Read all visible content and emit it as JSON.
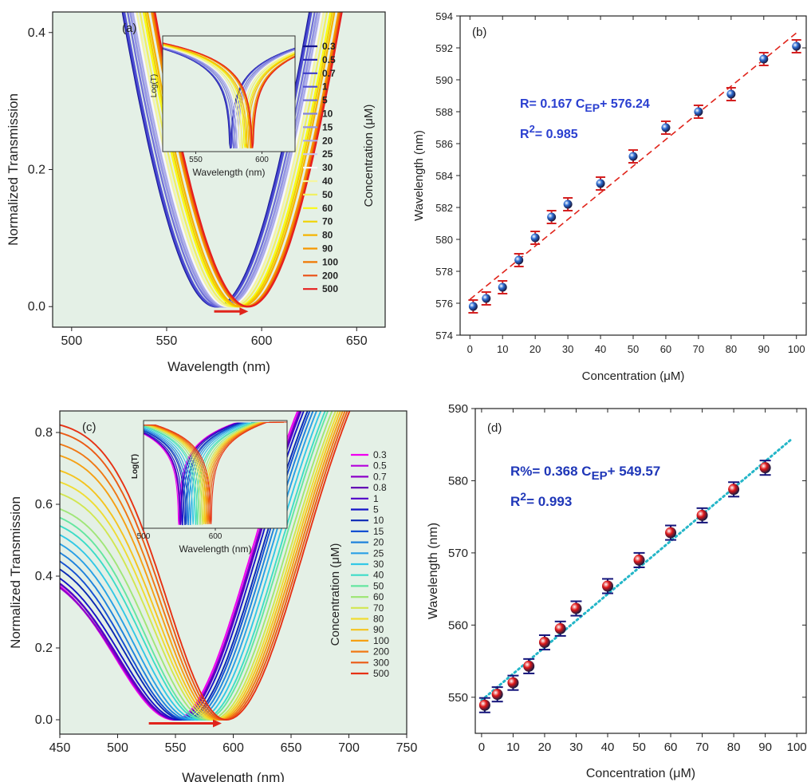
{
  "chart_data": [
    {
      "panel": "(a)",
      "type": "line",
      "xlabel": "Wavelength (nm)",
      "ylabel": "Normalized Transmission",
      "xlim": [
        490,
        665
      ],
      "ylim": [
        -0.03,
        0.43
      ],
      "xticks": [
        500,
        550,
        600,
        650
      ],
      "yticks": [
        0.0,
        0.2,
        0.4
      ],
      "background": "#e4f0e6",
      "legend_title": "Concentration (μM)",
      "legend_position": "right",
      "series": [
        {
          "name": "0.3",
          "color": "#14148c",
          "center": 576.0
        },
        {
          "name": "0.5",
          "color": "#2828b4",
          "center": 576.3
        },
        {
          "name": "0.7",
          "color": "#3c3cc8",
          "center": 576.5
        },
        {
          "name": "1",
          "color": "#5050d2",
          "center": 577.0
        },
        {
          "name": "5",
          "color": "#6e6ed8",
          "center": 578.7
        },
        {
          "name": "10",
          "color": "#8282de",
          "center": 580.0
        },
        {
          "name": "15",
          "color": "#9696e4",
          "center": 580.2
        },
        {
          "name": "20",
          "color": "#aaaaea",
          "center": 581.3
        },
        {
          "name": "25",
          "color": "#c8c8f0",
          "center": 582.2
        },
        {
          "name": "30",
          "color": "#f8f8ff",
          "center": 582.4
        },
        {
          "name": "40",
          "color": "#f5f5a0",
          "center": 583.5
        },
        {
          "name": "50",
          "color": "#f0f064",
          "center": 585.2
        },
        {
          "name": "60",
          "color": "#fafa14",
          "center": 587.0
        },
        {
          "name": "70",
          "color": "#f0d200",
          "center": 588.0
        },
        {
          "name": "80",
          "color": "#f5b400",
          "center": 589.1
        },
        {
          "name": "90",
          "color": "#f59600",
          "center": 591.3
        },
        {
          "name": "100",
          "color": "#f07800",
          "center": 592.1
        },
        {
          "name": "200",
          "color": "#eb5014",
          "center": 592.6
        },
        {
          "name": "500",
          "color": "#e61e1e",
          "center": 593.0
        }
      ],
      "inset": {
        "xlabel": "Wavelength (nm)",
        "ylabel": "Log(T)",
        "xticks": [
          550,
          600
        ]
      },
      "arrow_color": "#e0241b"
    },
    {
      "panel": "(b)",
      "type": "scatter",
      "xlabel": "Concentration (μM)",
      "ylabel": "Wavelength (nm)",
      "xlim": [
        -3,
        103
      ],
      "ylim": [
        574,
        594
      ],
      "xticks": [
        0,
        10,
        20,
        30,
        40,
        50,
        60,
        70,
        80,
        90,
        100
      ],
      "yticks": [
        574,
        576,
        578,
        580,
        582,
        584,
        586,
        588,
        590,
        592,
        594
      ],
      "x": [
        1,
        5,
        10,
        15,
        20,
        25,
        30,
        40,
        50,
        60,
        70,
        80,
        90,
        100
      ],
      "y": [
        575.8,
        576.3,
        577.0,
        578.7,
        580.1,
        581.4,
        582.2,
        583.5,
        585.2,
        587.0,
        588.0,
        589.1,
        591.3,
        592.1
      ],
      "error": [
        0.4,
        0.4,
        0.4,
        0.4,
        0.4,
        0.4,
        0.4,
        0.4,
        0.4,
        0.4,
        0.4,
        0.4,
        0.4,
        0.4
      ],
      "fit": {
        "slope": 0.167,
        "intercept": 576.24,
        "style": "dashed",
        "color": "#e0241b"
      },
      "annotations": {
        "equation": "R= 0.167 C",
        "sub": "EP",
        "tail": "+ 576.24",
        "r2_prefix": "R",
        "r2_sup": "2",
        "r2_value": "= 0.985"
      },
      "marker_color": "#2a6ad0",
      "error_color": "#d42020"
    },
    {
      "panel": "(c)",
      "type": "line",
      "xlabel": "Wavelength (nm)",
      "ylabel": "Normalized Transmission",
      "xlim": [
        450,
        750
      ],
      "ylim": [
        -0.04,
        0.86
      ],
      "xticks": [
        450,
        500,
        550,
        600,
        650,
        700,
        750
      ],
      "yticks": [
        0.0,
        0.2,
        0.4,
        0.6,
        0.8
      ],
      "background": "#e4f0e6",
      "legend_title": "Concentration (μM)",
      "legend_position": "right",
      "series": [
        {
          "name": "0.3",
          "color": "#f000f0",
          "center": 549.0,
          "left": 0.43
        },
        {
          "name": "0.5",
          "color": "#b400dc",
          "center": 550.5,
          "left": 0.42
        },
        {
          "name": "0.7",
          "color": "#8c00c8",
          "center": 551.0,
          "left": 0.42
        },
        {
          "name": "0.8",
          "color": "#6400b4",
          "center": 551.5,
          "left": 0.43
        },
        {
          "name": "1",
          "color": "#5000c8",
          "center": 552.0,
          "left": 0.43
        },
        {
          "name": "5",
          "color": "#1414c8",
          "center": 554.3,
          "left": 0.44
        },
        {
          "name": "10",
          "color": "#0a28b4",
          "center": 557.6,
          "left": 0.46
        },
        {
          "name": "15",
          "color": "#1450d2",
          "center": 559.5,
          "left": 0.48
        },
        {
          "name": "20",
          "color": "#1e82dc",
          "center": 562.3,
          "left": 0.5
        },
        {
          "name": "25",
          "color": "#28a0e6",
          "center": 565.4,
          "left": 0.52
        },
        {
          "name": "30",
          "color": "#32c8e6",
          "center": 569.0,
          "left": 0.54
        },
        {
          "name": "40",
          "color": "#3cdcc8",
          "center": 572.8,
          "left": 0.56
        },
        {
          "name": "50",
          "color": "#64e6a0",
          "center": 575.2,
          "left": 0.58
        },
        {
          "name": "60",
          "color": "#a0e678",
          "center": 578.8,
          "left": 0.6
        },
        {
          "name": "70",
          "color": "#d2e650",
          "center": 581.8,
          "left": 0.64
        },
        {
          "name": "80",
          "color": "#f0dc32",
          "center": 584.0,
          "left": 0.67
        },
        {
          "name": "90",
          "color": "#f5c31e",
          "center": 586.0,
          "left": 0.7
        },
        {
          "name": "100",
          "color": "#f5a014",
          "center": 588.0,
          "left": 0.74
        },
        {
          "name": "200",
          "color": "#f07814",
          "center": 590.0,
          "left": 0.77
        },
        {
          "name": "300",
          "color": "#eb5a14",
          "center": 592.0,
          "left": 0.8
        },
        {
          "name": "500",
          "color": "#e63214",
          "center": 594.0,
          "left": 0.82
        }
      ],
      "inset": {
        "xlabel": "Wavelength (nm)",
        "ylabel": "Log(T)",
        "xticks": [
          500,
          600
        ]
      },
      "arrow_color": "#e0241b"
    },
    {
      "panel": "(d)",
      "type": "scatter",
      "xlabel": "Concentration (μM)",
      "ylabel": "Wavelength (nm)",
      "xlim": [
        -2,
        103
      ],
      "ylim": [
        545,
        590
      ],
      "xticks": [
        0,
        10,
        20,
        30,
        40,
        50,
        60,
        70,
        80,
        90,
        100
      ],
      "yticks": [
        550,
        560,
        570,
        580,
        590
      ],
      "x": [
        1,
        5,
        10,
        15,
        20,
        25,
        30,
        40,
        50,
        60,
        70,
        80,
        90
      ],
      "y": [
        548.9,
        550.4,
        552.0,
        554.3,
        557.6,
        559.5,
        562.3,
        565.4,
        569.0,
        572.8,
        575.2,
        578.8,
        581.8
      ],
      "error": [
        1.0,
        1.0,
        1.0,
        1.0,
        1.0,
        1.0,
        1.0,
        1.0,
        1.0,
        1.0,
        1.0,
        1.0,
        1.0
      ],
      "fit": {
        "slope": 0.368,
        "intercept": 549.57,
        "style": "dotted",
        "color": "#24b6c8"
      },
      "annotations": {
        "equation": "R%= 0.368 C",
        "sub": "EP",
        "tail": "+ 549.57",
        "r2_prefix": "R",
        "r2_sup": "2",
        "r2_value": "= 0.993"
      },
      "marker_color": "#e01818",
      "error_color": "#14147a"
    }
  ]
}
